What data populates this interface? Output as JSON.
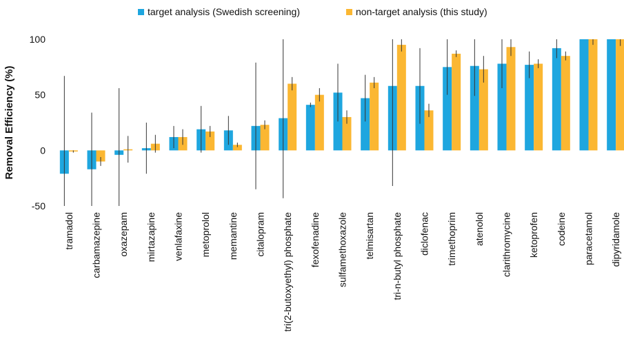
{
  "chart_data": {
    "type": "bar",
    "y_label": "Removal Efficiency (%)",
    "categories": [
      "tramadol",
      "carbamazepine",
      "oxazepam",
      "mirtazapine",
      "venlafaxine",
      "metoprolol",
      "memantine",
      "citalopram",
      "tri(2-butoxyethyl) phosphate",
      "fexofenadine",
      "sulfamethoxazole",
      "telmisartan",
      "tri-n-butyl phosphate",
      "diclofenac",
      "trimethoprim",
      "atenolol",
      "clarithromycine",
      "ketoprofen",
      "codeine",
      "paracetamol",
      "dipyridamole"
    ],
    "series": [
      {
        "name": "target analysis (Swedish screening)",
        "color": "#1ea6df",
        "values": [
          -21,
          -17,
          -4,
          2,
          12,
          19,
          18,
          22,
          29,
          41,
          52,
          47,
          58,
          58,
          75,
          76,
          78,
          77,
          92,
          100,
          100
        ],
        "errors": [
          88,
          51,
          60,
          23,
          10,
          21,
          13,
          57,
          72,
          2,
          26,
          21,
          90,
          34,
          25,
          27,
          22,
          12,
          9,
          0,
          0
        ]
      },
      {
        "name": "non-target analysis (this study)",
        "color": "#fbb732",
        "values": [
          -1,
          -10,
          1,
          6,
          12,
          17,
          5,
          23,
          60,
          50,
          30,
          61,
          95,
          36,
          87,
          73,
          93,
          78,
          85,
          100,
          100
        ],
        "errors": [
          1,
          4,
          12,
          8,
          7,
          5,
          2,
          4,
          6,
          6,
          6,
          5,
          6,
          6,
          3,
          12,
          8,
          4,
          4,
          5,
          6
        ]
      }
    ],
    "ylim": [
      -50,
      100
    ],
    "yticks": [
      -50,
      0,
      50,
      100
    ]
  }
}
